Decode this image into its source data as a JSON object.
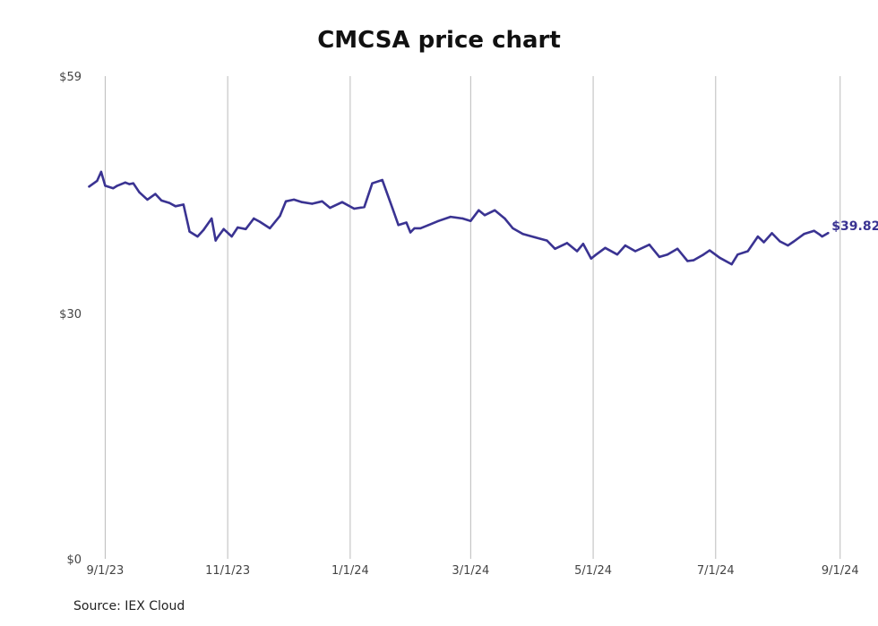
{
  "title": "CMCSA price chart",
  "source": "Source: IEX Cloud",
  "colors": {
    "line": "#3a3392",
    "grid": "#bbbbbb",
    "text": "#444444"
  },
  "chart_data": {
    "type": "line",
    "title": "CMCSA price chart",
    "xlabel": "",
    "ylabel": "",
    "x_ticks": [
      {
        "date": "2023-09-01",
        "label": "9/1/23"
      },
      {
        "date": "2023-11-01",
        "label": "11/1/23"
      },
      {
        "date": "2024-01-01",
        "label": "1/1/24"
      },
      {
        "date": "2024-03-01",
        "label": "3/1/24"
      },
      {
        "date": "2024-05-01",
        "label": "5/1/24"
      },
      {
        "date": "2024-07-01",
        "label": "7/1/24"
      },
      {
        "date": "2024-09-01",
        "label": "9/1/24"
      }
    ],
    "y_ticks": [
      {
        "value": 0,
        "label": "$0"
      },
      {
        "value": 30,
        "label": "$30"
      },
      {
        "value": 59,
        "label": "$59"
      }
    ],
    "ylim": [
      0,
      59
    ],
    "xlim": [
      "2023-08-22",
      "2024-09-02"
    ],
    "grid": "vertical",
    "last_value_label": "$39.82",
    "series": [
      {
        "x": [
          "2023-08-24",
          "2023-08-28",
          "2023-08-30",
          "2023-09-01",
          "2023-09-05",
          "2023-09-07",
          "2023-09-11",
          "2023-09-13",
          "2023-09-15",
          "2023-09-18",
          "2023-09-22",
          "2023-09-26",
          "2023-09-29",
          "2023-10-03",
          "2023-10-06",
          "2023-10-10",
          "2023-10-13",
          "2023-10-17",
          "2023-10-20",
          "2023-10-24",
          "2023-10-26",
          "2023-10-27",
          "2023-10-30",
          "2023-11-03",
          "2023-11-06",
          "2023-11-10",
          "2023-11-14",
          "2023-11-17",
          "2023-11-22",
          "2023-11-27",
          "2023-11-30",
          "2023-12-04",
          "2023-12-08",
          "2023-12-13",
          "2023-12-18",
          "2023-12-22",
          "2023-12-28",
          "2024-01-03",
          "2024-01-08",
          "2024-01-12",
          "2024-01-17",
          "2024-01-22",
          "2024-01-25",
          "2024-01-29",
          "2024-01-31",
          "2024-02-02",
          "2024-02-05",
          "2024-02-09",
          "2024-02-14",
          "2024-02-20",
          "2024-02-26",
          "2024-03-01",
          "2024-03-05",
          "2024-03-08",
          "2024-03-13",
          "2024-03-18",
          "2024-03-22",
          "2024-03-27",
          "2024-04-02",
          "2024-04-08",
          "2024-04-12",
          "2024-04-18",
          "2024-04-23",
          "2024-04-26",
          "2024-04-30",
          "2024-05-02",
          "2024-05-07",
          "2024-05-13",
          "2024-05-17",
          "2024-05-22",
          "2024-05-29",
          "2024-06-03",
          "2024-06-07",
          "2024-06-12",
          "2024-06-17",
          "2024-06-20",
          "2024-06-25",
          "2024-06-28",
          "2024-07-03",
          "2024-07-09",
          "2024-07-12",
          "2024-07-17",
          "2024-07-22",
          "2024-07-25",
          "2024-07-29",
          "2024-08-02",
          "2024-08-06",
          "2024-08-09",
          "2024-08-14",
          "2024-08-19",
          "2024-08-22",
          "2024-08-23",
          "2024-08-26"
        ],
        "y": [
          45.5,
          46.2,
          47.3,
          45.6,
          45.3,
          45.6,
          46.0,
          45.8,
          45.9,
          44.8,
          43.9,
          44.6,
          43.8,
          43.5,
          43.1,
          43.3,
          40.0,
          39.4,
          40.2,
          41.6,
          38.9,
          39.3,
          40.3,
          39.4,
          40.5,
          40.3,
          41.6,
          41.2,
          40.4,
          41.9,
          43.7,
          43.9,
          43.6,
          43.4,
          43.7,
          42.9,
          43.6,
          42.8,
          43.0,
          45.9,
          46.3,
          42.9,
          40.8,
          41.1,
          39.9,
          40.4,
          40.4,
          40.8,
          41.3,
          41.8,
          41.6,
          41.3,
          42.6,
          42.0,
          42.6,
          41.6,
          40.4,
          39.7,
          39.3,
          38.9,
          37.9,
          38.6,
          37.6,
          38.5,
          36.7,
          37.1,
          38.0,
          37.2,
          38.3,
          37.6,
          38.4,
          36.9,
          37.2,
          37.9,
          36.4,
          36.5,
          37.2,
          37.7,
          36.8,
          36.0,
          37.2,
          37.6,
          39.4,
          38.7,
          39.8,
          38.8,
          38.3,
          38.8,
          39.7,
          40.1,
          39.6,
          39.4,
          39.82
        ]
      }
    ]
  }
}
